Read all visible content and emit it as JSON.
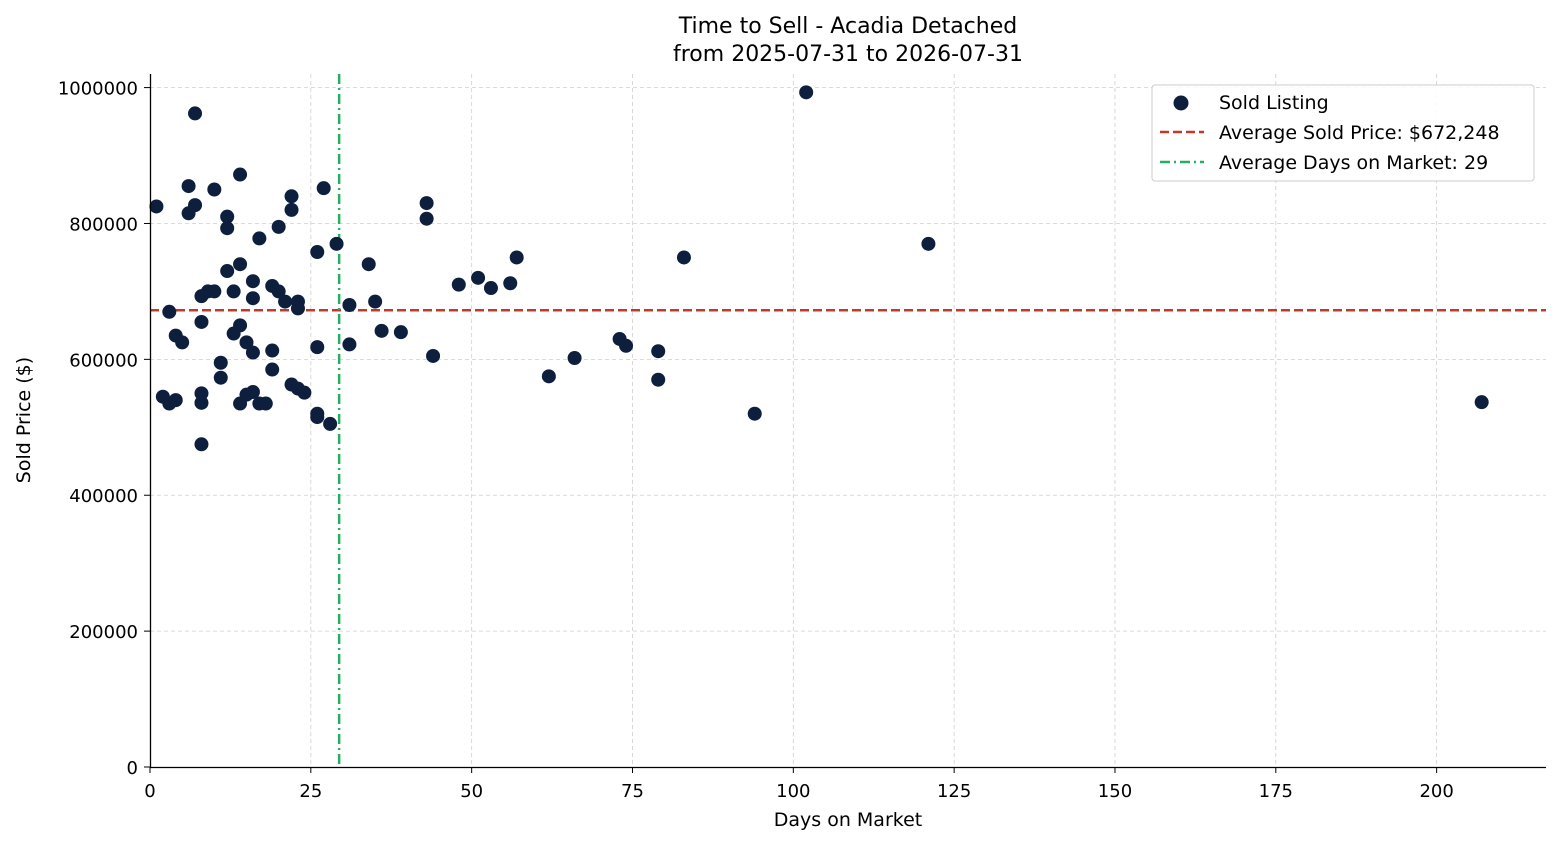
{
  "chart_data": {
    "type": "scatter",
    "title": "Time to Sell - Acadia Detached",
    "subtitle": "from 2025-07-31 to 2026-07-31",
    "xlabel": "Days on Market",
    "ylabel": "Sold Price ($)",
    "xlim": [
      0,
      217
    ],
    "ylim": [
      0,
      1020000
    ],
    "x_ticks": [
      0,
      25,
      50,
      75,
      100,
      125,
      150,
      175,
      200
    ],
    "y_ticks": [
      0,
      200000,
      400000,
      600000,
      800000,
      1000000
    ],
    "grid": true,
    "legend_position": "top-right",
    "series": [
      {
        "name": "Sold Listing",
        "color": "#0d1f3c",
        "points": [
          [
            1,
            825000
          ],
          [
            2,
            545000
          ],
          [
            3,
            535000
          ],
          [
            3,
            670000
          ],
          [
            4,
            635000
          ],
          [
            4,
            540000
          ],
          [
            5,
            625000
          ],
          [
            6,
            855000
          ],
          [
            6,
            815000
          ],
          [
            7,
            962000
          ],
          [
            7,
            827000
          ],
          [
            8,
            693000
          ],
          [
            8,
            655000
          ],
          [
            8,
            550000
          ],
          [
            8,
            536000
          ],
          [
            8,
            475000
          ],
          [
            9,
            700000
          ],
          [
            10,
            850000
          ],
          [
            10,
            700000
          ],
          [
            11,
            595000
          ],
          [
            11,
            573000
          ],
          [
            12,
            810000
          ],
          [
            12,
            793000
          ],
          [
            12,
            730000
          ],
          [
            13,
            700000
          ],
          [
            13,
            638000
          ],
          [
            14,
            872000
          ],
          [
            14,
            740000
          ],
          [
            14,
            650000
          ],
          [
            14,
            535000
          ],
          [
            15,
            625000
          ],
          [
            15,
            548000
          ],
          [
            16,
            715000
          ],
          [
            16,
            690000
          ],
          [
            16,
            610000
          ],
          [
            16,
            552000
          ],
          [
            17,
            778000
          ],
          [
            17,
            535000
          ],
          [
            18,
            535000
          ],
          [
            19,
            708000
          ],
          [
            19,
            613000
          ],
          [
            19,
            585000
          ],
          [
            20,
            795000
          ],
          [
            20,
            700000
          ],
          [
            21,
            685000
          ],
          [
            22,
            840000
          ],
          [
            22,
            820000
          ],
          [
            22,
            563000
          ],
          [
            23,
            685000
          ],
          [
            23,
            675000
          ],
          [
            23,
            557000
          ],
          [
            24,
            551000
          ],
          [
            26,
            758000
          ],
          [
            26,
            618000
          ],
          [
            26,
            520000
          ],
          [
            26,
            515000
          ],
          [
            27,
            852000
          ],
          [
            28,
            505000
          ],
          [
            29,
            770000
          ],
          [
            31,
            680000
          ],
          [
            31,
            622000
          ],
          [
            34,
            740000
          ],
          [
            35,
            685000
          ],
          [
            36,
            642000
          ],
          [
            39,
            640000
          ],
          [
            43,
            830000
          ],
          [
            43,
            807000
          ],
          [
            44,
            605000
          ],
          [
            48,
            710000
          ],
          [
            51,
            720000
          ],
          [
            53,
            705000
          ],
          [
            56,
            712000
          ],
          [
            57,
            750000
          ],
          [
            62,
            575000
          ],
          [
            66,
            602000
          ],
          [
            73,
            630000
          ],
          [
            74,
            620000
          ],
          [
            79,
            612000
          ],
          [
            79,
            570000
          ],
          [
            83,
            750000
          ],
          [
            94,
            520000
          ],
          [
            102,
            993000
          ],
          [
            121,
            770000
          ],
          [
            207,
            537000
          ]
        ]
      }
    ],
    "reference_lines": [
      {
        "orientation": "horizontal",
        "value": 672248,
        "label": "Average Sold Price: $672,248",
        "color": "#c0392b",
        "style": "dashed"
      },
      {
        "orientation": "vertical",
        "value": 29.4,
        "label": "Average Days on Market: 29",
        "color": "#27ae60",
        "style": "dashdot"
      }
    ]
  }
}
